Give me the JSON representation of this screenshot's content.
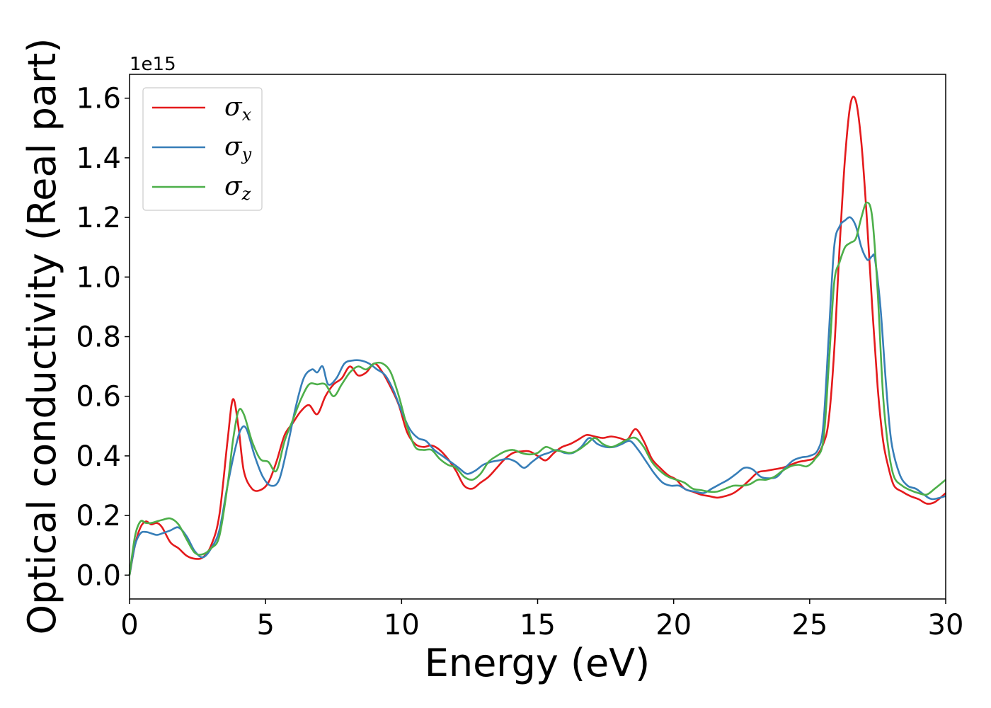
{
  "chart_data": {
    "type": "line",
    "title": "",
    "xlabel": "Energy (eV)",
    "ylabel": "Optical conductivity (Real part)",
    "y_offset_text": "1e15",
    "xlim": [
      0,
      30
    ],
    "ylim": [
      -0.08,
      1.68
    ],
    "xticks": [
      0,
      5,
      10,
      15,
      20,
      25,
      30
    ],
    "xtick_labels": [
      "0",
      "5",
      "10",
      "15",
      "20",
      "25",
      "30"
    ],
    "yticks": [
      0.0,
      0.2,
      0.4,
      0.6,
      0.8,
      1.0,
      1.2,
      1.4,
      1.6
    ],
    "ytick_labels": [
      "0.0",
      "0.2",
      "0.4",
      "0.6",
      "0.8",
      "1.0",
      "1.2",
      "1.4",
      "1.6"
    ],
    "grid": false,
    "legend_position": "top-left",
    "series": [
      {
        "name": "σx",
        "base": "σ",
        "sub": "x",
        "color": "#e41a1c",
        "x": [
          0,
          0.2,
          0.4,
          0.6,
          0.8,
          1.0,
          1.2,
          1.5,
          1.8,
          2.1,
          2.4,
          2.7,
          3.0,
          3.3,
          3.6,
          3.8,
          4.0,
          4.2,
          4.5,
          4.8,
          5.1,
          5.4,
          5.7,
          6.0,
          6.3,
          6.6,
          6.9,
          7.2,
          7.5,
          7.8,
          8.1,
          8.4,
          8.7,
          9.0,
          9.3,
          9.6,
          9.9,
          10.2,
          10.5,
          10.8,
          11.1,
          11.4,
          11.7,
          12.0,
          12.3,
          12.6,
          12.9,
          13.2,
          13.5,
          13.8,
          14.1,
          14.4,
          14.7,
          15.0,
          15.3,
          15.6,
          15.9,
          16.2,
          16.5,
          16.8,
          17.1,
          17.4,
          17.7,
          18.0,
          18.3,
          18.6,
          18.9,
          19.2,
          19.5,
          19.8,
          20.1,
          20.4,
          20.7,
          21.0,
          21.3,
          21.6,
          21.9,
          22.2,
          22.5,
          22.8,
          23.1,
          23.4,
          23.7,
          24.0,
          24.3,
          24.6,
          24.9,
          25.2,
          25.5,
          25.7,
          25.9,
          26.1,
          26.3,
          26.5,
          26.7,
          26.9,
          27.1,
          27.3,
          27.5,
          27.7,
          27.9,
          28.1,
          28.4,
          28.7,
          29.0,
          29.3,
          29.6,
          30.0
        ],
        "y": [
          0.0,
          0.1,
          0.16,
          0.18,
          0.17,
          0.175,
          0.16,
          0.11,
          0.09,
          0.065,
          0.055,
          0.06,
          0.1,
          0.2,
          0.45,
          0.59,
          0.5,
          0.35,
          0.29,
          0.285,
          0.31,
          0.38,
          0.47,
          0.51,
          0.55,
          0.57,
          0.54,
          0.6,
          0.64,
          0.66,
          0.7,
          0.67,
          0.68,
          0.71,
          0.68,
          0.63,
          0.57,
          0.48,
          0.44,
          0.43,
          0.435,
          0.42,
          0.39,
          0.35,
          0.3,
          0.29,
          0.31,
          0.33,
          0.36,
          0.39,
          0.41,
          0.415,
          0.415,
          0.4,
          0.385,
          0.41,
          0.43,
          0.44,
          0.455,
          0.47,
          0.465,
          0.46,
          0.465,
          0.46,
          0.455,
          0.49,
          0.45,
          0.39,
          0.36,
          0.335,
          0.32,
          0.29,
          0.28,
          0.27,
          0.265,
          0.26,
          0.265,
          0.275,
          0.295,
          0.32,
          0.345,
          0.35,
          0.355,
          0.36,
          0.37,
          0.38,
          0.385,
          0.395,
          0.44,
          0.52,
          0.75,
          1.1,
          1.4,
          1.58,
          1.59,
          1.45,
          1.2,
          0.9,
          0.63,
          0.45,
          0.36,
          0.3,
          0.28,
          0.265,
          0.255,
          0.24,
          0.245,
          0.275
        ]
      },
      {
        "name": "σy",
        "base": "σ",
        "sub": "y",
        "color": "#377eb8",
        "x": [
          0,
          0.2,
          0.4,
          0.6,
          0.8,
          1.0,
          1.2,
          1.5,
          1.8,
          2.1,
          2.4,
          2.7,
          3.0,
          3.3,
          3.6,
          3.9,
          4.1,
          4.3,
          4.6,
          4.9,
          5.2,
          5.5,
          5.8,
          6.1,
          6.4,
          6.7,
          6.9,
          7.1,
          7.3,
          7.6,
          7.9,
          8.2,
          8.5,
          8.8,
          9.1,
          9.4,
          9.7,
          10.0,
          10.3,
          10.6,
          10.9,
          11.2,
          11.5,
          11.8,
          12.1,
          12.4,
          12.7,
          13.0,
          13.3,
          13.6,
          13.9,
          14.2,
          14.5,
          14.8,
          15.1,
          15.4,
          15.7,
          16.0,
          16.3,
          16.6,
          16.9,
          17.2,
          17.5,
          17.8,
          18.1,
          18.4,
          18.7,
          19.0,
          19.3,
          19.6,
          19.9,
          20.2,
          20.5,
          20.8,
          21.1,
          21.4,
          21.7,
          22.0,
          22.3,
          22.6,
          22.9,
          23.2,
          23.5,
          23.8,
          24.1,
          24.4,
          24.7,
          25.0,
          25.3,
          25.5,
          25.7,
          25.9,
          26.1,
          26.3,
          26.5,
          26.7,
          26.9,
          27.1,
          27.2,
          27.3,
          27.4,
          27.6,
          27.8,
          28.0,
          28.3,
          28.6,
          28.9,
          29.2,
          29.5,
          30.0
        ],
        "y": [
          0.0,
          0.1,
          0.14,
          0.145,
          0.14,
          0.135,
          0.14,
          0.15,
          0.16,
          0.13,
          0.08,
          0.06,
          0.09,
          0.15,
          0.3,
          0.43,
          0.49,
          0.49,
          0.4,
          0.33,
          0.3,
          0.32,
          0.43,
          0.56,
          0.66,
          0.69,
          0.68,
          0.7,
          0.64,
          0.66,
          0.71,
          0.72,
          0.72,
          0.71,
          0.69,
          0.67,
          0.62,
          0.55,
          0.49,
          0.46,
          0.45,
          0.42,
          0.4,
          0.38,
          0.36,
          0.34,
          0.35,
          0.37,
          0.38,
          0.385,
          0.39,
          0.38,
          0.36,
          0.38,
          0.4,
          0.41,
          0.42,
          0.41,
          0.41,
          0.43,
          0.46,
          0.44,
          0.43,
          0.43,
          0.44,
          0.45,
          0.42,
          0.38,
          0.34,
          0.31,
          0.3,
          0.3,
          0.285,
          0.28,
          0.275,
          0.29,
          0.305,
          0.32,
          0.34,
          0.36,
          0.355,
          0.33,
          0.325,
          0.33,
          0.36,
          0.385,
          0.395,
          0.4,
          0.42,
          0.5,
          0.8,
          1.1,
          1.17,
          1.19,
          1.2,
          1.17,
          1.1,
          1.06,
          1.06,
          1.07,
          1.06,
          0.9,
          0.65,
          0.45,
          0.34,
          0.3,
          0.29,
          0.27,
          0.255,
          0.265
        ]
      },
      {
        "name": "σz",
        "base": "σ",
        "sub": "z",
        "color": "#4daf4a",
        "x": [
          0,
          0.2,
          0.4,
          0.6,
          0.8,
          1.0,
          1.2,
          1.5,
          1.8,
          2.1,
          2.4,
          2.7,
          3.0,
          3.3,
          3.6,
          3.8,
          4.0,
          4.2,
          4.5,
          4.8,
          5.1,
          5.4,
          5.7,
          6.0,
          6.3,
          6.6,
          6.9,
          7.2,
          7.5,
          7.8,
          8.1,
          8.4,
          8.7,
          9.0,
          9.3,
          9.6,
          9.9,
          10.2,
          10.5,
          10.8,
          11.1,
          11.4,
          11.7,
          12.0,
          12.3,
          12.6,
          12.9,
          13.2,
          13.5,
          13.8,
          14.1,
          14.4,
          14.7,
          15.0,
          15.3,
          15.6,
          15.9,
          16.2,
          16.5,
          16.8,
          17.1,
          17.4,
          17.7,
          18.0,
          18.3,
          18.6,
          18.9,
          19.2,
          19.5,
          19.8,
          20.1,
          20.4,
          20.7,
          21.0,
          21.3,
          21.6,
          21.9,
          22.2,
          22.5,
          22.8,
          23.1,
          23.4,
          23.7,
          24.0,
          24.3,
          24.6,
          24.9,
          25.2,
          25.5,
          25.7,
          25.9,
          26.1,
          26.3,
          26.5,
          26.7,
          26.9,
          27.1,
          27.3,
          27.5,
          27.7,
          27.9,
          28.1,
          28.4,
          28.7,
          29.0,
          29.3,
          29.6,
          30.0
        ],
        "y": [
          0.0,
          0.13,
          0.18,
          0.175,
          0.175,
          0.18,
          0.185,
          0.19,
          0.17,
          0.12,
          0.075,
          0.07,
          0.09,
          0.13,
          0.3,
          0.45,
          0.55,
          0.54,
          0.45,
          0.39,
          0.38,
          0.35,
          0.45,
          0.52,
          0.59,
          0.64,
          0.64,
          0.64,
          0.6,
          0.64,
          0.68,
          0.7,
          0.69,
          0.71,
          0.71,
          0.68,
          0.6,
          0.5,
          0.43,
          0.42,
          0.42,
          0.39,
          0.37,
          0.36,
          0.33,
          0.32,
          0.34,
          0.38,
          0.4,
          0.415,
          0.42,
          0.41,
          0.405,
          0.41,
          0.43,
          0.42,
          0.415,
          0.41,
          0.42,
          0.44,
          0.46,
          0.44,
          0.43,
          0.44,
          0.455,
          0.46,
          0.43,
          0.38,
          0.35,
          0.33,
          0.32,
          0.31,
          0.29,
          0.285,
          0.28,
          0.28,
          0.29,
          0.3,
          0.3,
          0.305,
          0.32,
          0.32,
          0.33,
          0.35,
          0.365,
          0.37,
          0.365,
          0.39,
          0.45,
          0.7,
          0.98,
          1.05,
          1.1,
          1.115,
          1.13,
          1.2,
          1.25,
          1.2,
          0.95,
          0.6,
          0.42,
          0.33,
          0.3,
          0.285,
          0.275,
          0.27,
          0.29,
          0.32
        ]
      }
    ]
  }
}
